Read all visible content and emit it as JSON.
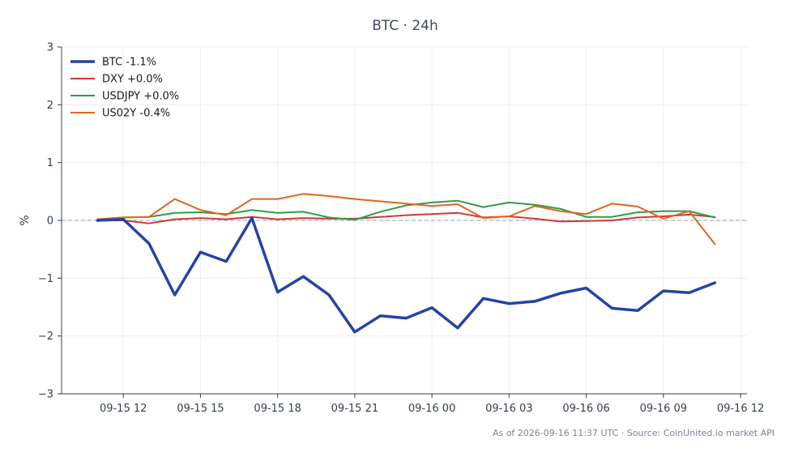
{
  "chart_data": {
    "type": "line",
    "title": "BTC · 24h",
    "xlabel": "",
    "ylabel": "%",
    "ylim": [
      -3,
      3
    ],
    "yticks": [
      -3,
      -2,
      -1,
      0,
      1,
      2,
      3
    ],
    "ytick_labels": [
      "−3",
      "−2",
      "−1",
      "0",
      "1",
      "2",
      "3"
    ],
    "xlim": [
      "2026-09-15 09:36",
      "2026-09-16 12:15"
    ],
    "xticks": [
      "2026-09-15 12:00",
      "2026-09-15 15:00",
      "2026-09-15 18:00",
      "2026-09-15 21:00",
      "2026-09-16 00:00",
      "2026-09-16 03:00",
      "2026-09-16 06:00",
      "2026-09-16 09:00",
      "2026-09-16 12:00"
    ],
    "xtick_labels": [
      "09-15 12",
      "09-15 15",
      "09-15 18",
      "09-15 21",
      "09-16 00",
      "09-16 03",
      "09-16 06",
      "09-16 09",
      "09-16 12"
    ],
    "grid": true,
    "zero_line": true,
    "legend": "top-left",
    "x": [
      "2026-09-15 11:00",
      "2026-09-15 12:00",
      "2026-09-15 13:00",
      "2026-09-15 14:00",
      "2026-09-15 15:00",
      "2026-09-15 16:00",
      "2026-09-15 17:00",
      "2026-09-15 18:00",
      "2026-09-15 19:00",
      "2026-09-15 20:00",
      "2026-09-15 21:00",
      "2026-09-15 22:00",
      "2026-09-15 23:00",
      "2026-09-16 00:00",
      "2026-09-16 01:00",
      "2026-09-16 02:00",
      "2026-09-16 03:00",
      "2026-09-16 04:00",
      "2026-09-16 05:00",
      "2026-09-16 06:00",
      "2026-09-16 07:00",
      "2026-09-16 08:00",
      "2026-09-16 09:00",
      "2026-09-16 10:00",
      "2026-09-16 11:00"
    ],
    "series": [
      {
        "name": "BTC -1.1%",
        "color": "#2444a4",
        "width": 3.5,
        "values": [
          0.0,
          0.02,
          -0.4,
          -1.29,
          -0.55,
          -0.71,
          0.04,
          -1.24,
          -0.97,
          -1.29,
          -1.93,
          -1.65,
          -1.69,
          -1.51,
          -1.86,
          -1.35,
          -1.44,
          -1.4,
          -1.26,
          -1.17,
          -1.52,
          -1.56,
          -1.22,
          -1.25,
          -1.08
        ]
      },
      {
        "name": "DXY +0.0%",
        "color": "#d03a34",
        "width": 2,
        "values": [
          0.0,
          0.0,
          -0.05,
          0.02,
          0.04,
          0.02,
          0.06,
          0.02,
          0.04,
          0.03,
          0.03,
          0.06,
          0.09,
          0.11,
          0.13,
          0.05,
          0.07,
          0.03,
          -0.02,
          -0.01,
          0.0,
          0.05,
          0.07,
          0.1,
          0.06
        ]
      },
      {
        "name": "USDJPY +0.0%",
        "color": "#2e9c48",
        "width": 2,
        "values": [
          0.02,
          0.05,
          0.06,
          0.13,
          0.14,
          0.11,
          0.18,
          0.13,
          0.15,
          0.05,
          0.01,
          0.15,
          0.26,
          0.31,
          0.34,
          0.23,
          0.31,
          0.27,
          0.2,
          0.06,
          0.06,
          0.14,
          0.16,
          0.16,
          0.05
        ]
      },
      {
        "name": "US02Y -0.4%",
        "color": "#e0661e",
        "width": 2,
        "values": [
          0.02,
          0.05,
          0.06,
          0.37,
          0.18,
          0.09,
          0.37,
          0.37,
          0.46,
          0.42,
          0.37,
          0.33,
          0.29,
          0.25,
          0.28,
          0.04,
          0.07,
          0.25,
          0.16,
          0.11,
          0.29,
          0.24,
          0.03,
          0.16,
          -0.41
        ]
      }
    ],
    "footer": "As of 2026-09-16 11:37 UTC · Source: CoinUnited.io market API"
  }
}
